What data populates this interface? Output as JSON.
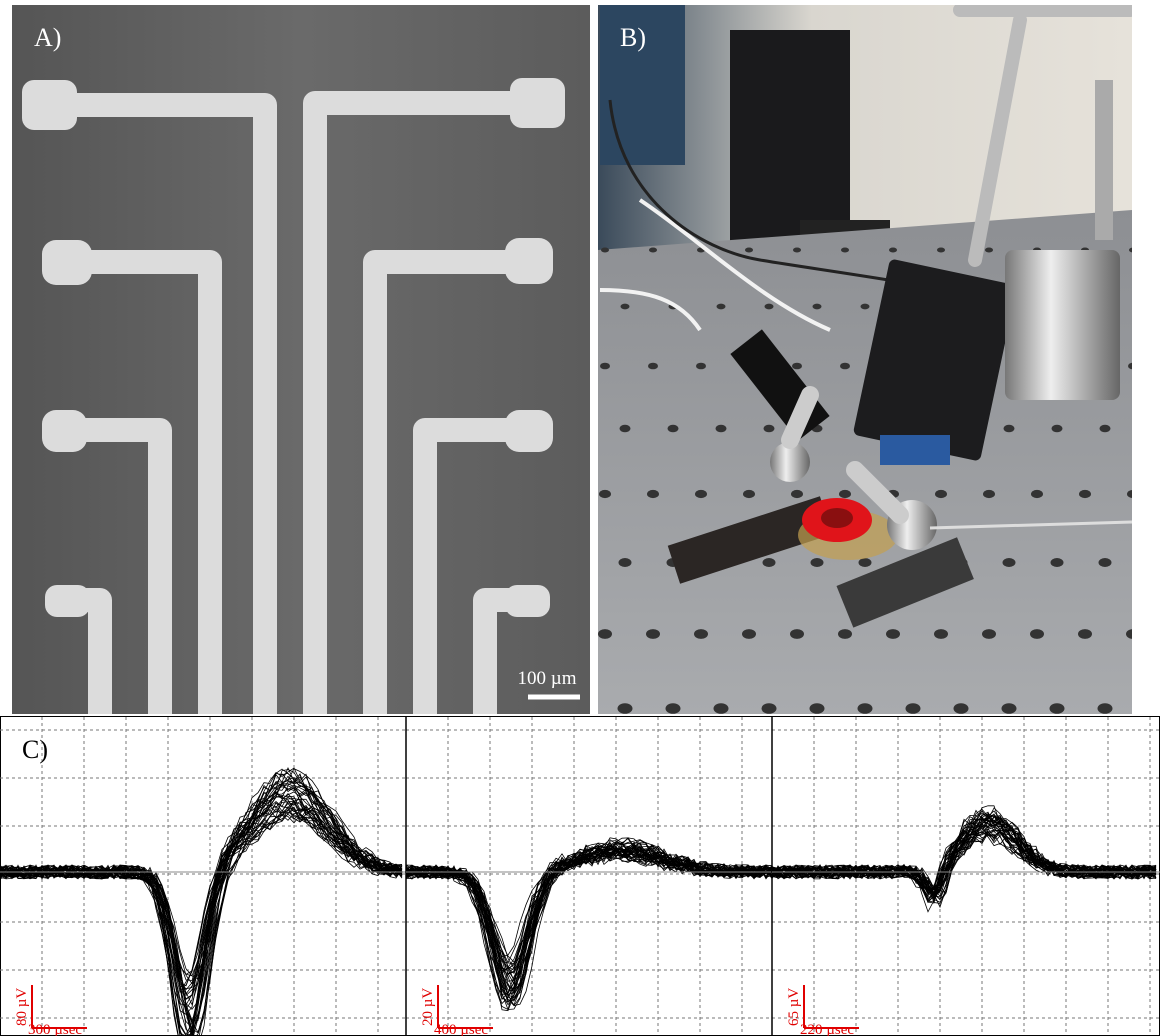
{
  "panels": [
    {
      "label": "A)",
      "scale_bar": "100 µm"
    },
    {
      "label": "B)"
    },
    {
      "label": "C)",
      "traces": [
        {
          "amplitude": "80 µV",
          "duration": "300 µsec"
        },
        {
          "amplitude": "20 µV",
          "duration": "400 µsec"
        },
        {
          "amplitude": "65 µV",
          "duration": "220 µsec"
        }
      ]
    }
  ]
}
